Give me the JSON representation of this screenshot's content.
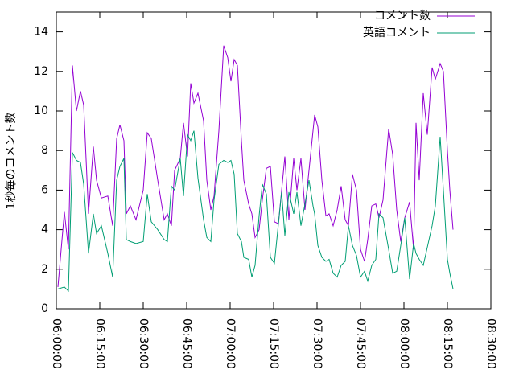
{
  "chart_data": {
    "type": "line",
    "ylabel": "1秒毎のコメント数",
    "x": [
      "06:00:33",
      "06:02:47",
      "06:04:10",
      "06:05:33",
      "06:06:57",
      "06:08:20",
      "06:09:27",
      "06:11:07",
      "06:12:47",
      "06:13:53",
      "06:15:33",
      "06:17:47",
      "06:19:27",
      "06:20:50",
      "06:21:57",
      "06:23:20",
      "06:24:10",
      "06:25:33",
      "06:27:30",
      "06:30:00",
      "06:31:23",
      "06:32:47",
      "06:35:00",
      "06:37:13",
      "06:38:20",
      "06:39:43",
      "06:40:50",
      "06:42:47",
      "06:43:53",
      "06:45:17",
      "06:46:23",
      "06:47:30",
      "06:48:53",
      "06:50:50",
      "06:51:57",
      "06:53:20",
      "06:54:27",
      "06:56:07",
      "06:57:47",
      "06:59:10",
      "07:00:17",
      "07:01:23",
      "07:02:30",
      "07:03:53",
      "07:04:43",
      "07:06:23",
      "07:07:30",
      "07:08:37",
      "07:10:00",
      "07:11:07",
      "07:12:30",
      "07:13:53",
      "07:15:17",
      "07:16:40",
      "07:17:47",
      "07:18:53",
      "07:20:17",
      "07:21:57",
      "07:23:03",
      "07:24:27",
      "07:25:50",
      "07:27:13",
      "07:28:37",
      "07:29:10",
      "07:30:17",
      "07:31:40",
      "07:33:03",
      "07:34:10",
      "07:35:33",
      "07:36:57",
      "07:38:20",
      "07:39:43",
      "07:40:50",
      "07:42:13",
      "07:43:37",
      "07:45:00",
      "07:46:23",
      "07:47:30",
      "07:48:53",
      "07:50:17",
      "07:51:23",
      "07:52:47",
      "07:54:43",
      "07:56:07",
      "07:57:30",
      "07:58:53",
      "08:00:17",
      "08:01:57",
      "08:03:20",
      "08:04:10",
      "08:05:17",
      "08:06:40",
      "08:08:03",
      "08:09:43",
      "08:10:50",
      "08:12:30",
      "08:13:37",
      "08:15:00",
      "08:15:50",
      "08:16:57"
    ],
    "series": [
      {
        "name": "コメント数",
        "color": "#9400d3",
        "values": [
          1.1,
          4.9,
          3.0,
          12.3,
          10.0,
          11.0,
          10.3,
          4.8,
          8.2,
          6.5,
          5.6,
          5.7,
          4.2,
          8.6,
          9.3,
          8.5,
          4.8,
          5.2,
          4.5,
          6.0,
          8.9,
          8.6,
          6.5,
          4.5,
          4.8,
          4.2,
          7.0,
          7.6,
          9.4,
          7.7,
          11.4,
          10.4,
          10.9,
          9.5,
          6.5,
          5.0,
          5.7,
          9.0,
          13.3,
          12.7,
          11.5,
          12.6,
          12.3,
          8.5,
          6.5,
          5.3,
          4.8,
          3.6,
          4.0,
          5.5,
          7.1,
          7.2,
          4.4,
          4.3,
          6.0,
          7.7,
          4.5,
          7.6,
          6.0,
          7.6,
          5.0,
          7.0,
          9.0,
          9.8,
          9.2,
          6.5,
          4.7,
          4.8,
          4.2,
          5.0,
          6.2,
          4.5,
          4.2,
          6.8,
          6.0,
          3.0,
          2.4,
          3.5,
          5.2,
          5.3,
          4.6,
          5.5,
          9.1,
          7.8,
          5.0,
          3.4,
          4.6,
          5.4,
          3.0,
          9.4,
          6.5,
          10.9,
          8.8,
          12.2,
          11.6,
          12.4,
          12.0,
          8.0,
          6.0,
          4.0
        ]
      },
      {
        "name": "英語コメント",
        "color": "#009e73",
        "values": [
          1.0,
          1.1,
          0.9,
          7.9,
          7.5,
          7.4,
          6.3,
          2.8,
          4.8,
          3.8,
          4.2,
          2.8,
          1.6,
          6.5,
          7.2,
          7.6,
          3.5,
          3.4,
          3.3,
          3.4,
          5.8,
          4.4,
          4.0,
          3.5,
          3.4,
          6.2,
          6.0,
          7.6,
          5.7,
          8.8,
          8.5,
          9.0,
          6.6,
          4.5,
          3.6,
          3.4,
          5.5,
          7.3,
          7.5,
          7.4,
          7.5,
          6.8,
          3.8,
          3.4,
          2.6,
          2.5,
          1.6,
          2.2,
          4.7,
          6.3,
          5.8,
          2.6,
          2.3,
          4.3,
          5.9,
          3.7,
          5.9,
          4.8,
          5.9,
          4.2,
          5.3,
          6.5,
          5.2,
          4.8,
          3.2,
          2.6,
          2.4,
          2.5,
          1.8,
          1.6,
          2.2,
          2.4,
          4.2,
          3.2,
          2.7,
          1.6,
          1.9,
          1.4,
          2.2,
          2.5,
          4.8,
          4.6,
          3.0,
          1.8,
          1.9,
          3.2,
          4.6,
          1.5,
          3.3,
          2.8,
          2.5,
          2.2,
          3.1,
          4.2,
          5.2,
          8.7,
          6.0,
          2.5,
          1.8,
          1.0
        ]
      }
    ],
    "xlim": [
      "06:00:00",
      "08:30:00"
    ],
    "xticks": [
      "06:00:00",
      "06:15:00",
      "06:30:00",
      "06:45:00",
      "07:00:00",
      "07:15:00",
      "07:30:00",
      "07:45:00",
      "08:00:00",
      "08:15:00",
      "08:30:00"
    ],
    "ylim": [
      0,
      15
    ],
    "yticks": [
      0,
      2,
      4,
      6,
      8,
      10,
      12,
      14
    ],
    "legend": "top-right"
  }
}
